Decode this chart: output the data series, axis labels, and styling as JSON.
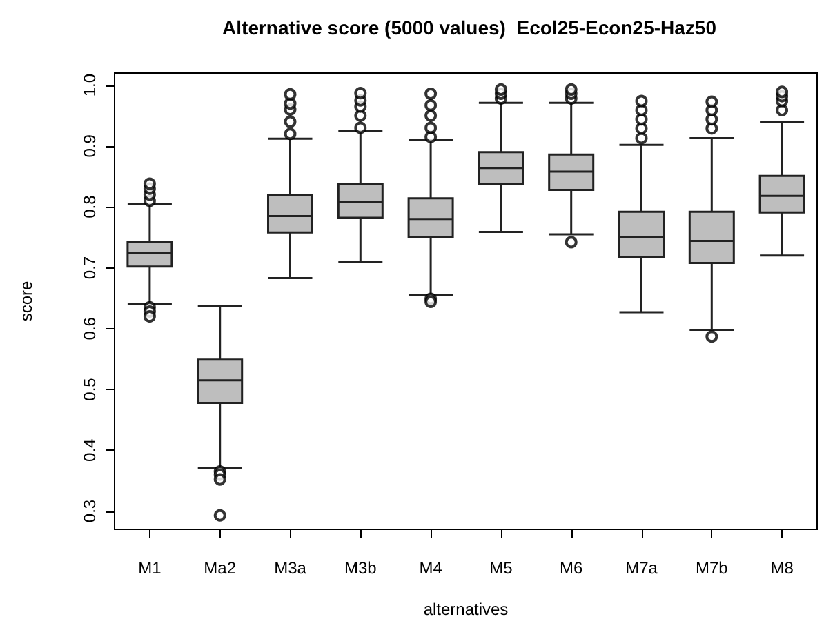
{
  "chart_data": {
    "type": "box",
    "title": "Alternative score (5000 values)  Ecol25-Econ25-Haz50",
    "xlabel": "alternatives",
    "ylabel": "score",
    "categories": [
      "M1",
      "Ma2",
      "M3a",
      "M3b",
      "M4",
      "M5",
      "M6",
      "M7a",
      "M7b",
      "M8"
    ],
    "color": "#bebebe",
    "boxes": [
      {
        "low": 0.641,
        "q1": 0.702,
        "median": 0.724,
        "q3": 0.742,
        "high": 0.805,
        "outliers": [
          0.81,
          0.82,
          0.83,
          0.838,
          0.635,
          0.628,
          0.62
        ]
      },
      {
        "low": 0.371,
        "q1": 0.478,
        "median": 0.515,
        "q3": 0.549,
        "high": 0.637,
        "outliers": [
          0.365,
          0.36,
          0.352,
          0.293
        ]
      },
      {
        "low": 0.683,
        "q1": 0.758,
        "median": 0.785,
        "q3": 0.819,
        "high": 0.912,
        "outliers": [
          0.92,
          0.94,
          0.96,
          0.97,
          0.985
        ]
      },
      {
        "low": 0.709,
        "q1": 0.782,
        "median": 0.808,
        "q3": 0.838,
        "high": 0.925,
        "outliers": [
          0.93,
          0.95,
          0.965,
          0.975,
          0.987
        ]
      },
      {
        "low": 0.655,
        "q1": 0.75,
        "median": 0.78,
        "q3": 0.814,
        "high": 0.91,
        "outliers": [
          0.915,
          0.93,
          0.95,
          0.967,
          0.986,
          0.649,
          0.644
        ]
      },
      {
        "low": 0.759,
        "q1": 0.837,
        "median": 0.864,
        "q3": 0.89,
        "high": 0.971,
        "outliers": [
          0.978,
          0.986,
          0.993
        ]
      },
      {
        "low": 0.755,
        "q1": 0.828,
        "median": 0.858,
        "q3": 0.886,
        "high": 0.971,
        "outliers": [
          0.978,
          0.986,
          0.993,
          0.742
        ]
      },
      {
        "low": 0.627,
        "q1": 0.717,
        "median": 0.75,
        "q3": 0.792,
        "high": 0.902,
        "outliers": [
          0.913,
          0.929,
          0.944,
          0.959,
          0.974
        ]
      },
      {
        "low": 0.598,
        "q1": 0.708,
        "median": 0.744,
        "q3": 0.792,
        "high": 0.913,
        "outliers": [
          0.929,
          0.944,
          0.959,
          0.973,
          0.587
        ]
      },
      {
        "low": 0.72,
        "q1": 0.791,
        "median": 0.818,
        "q3": 0.851,
        "high": 0.94,
        "outliers": [
          0.959,
          0.974,
          0.982,
          0.989
        ]
      }
    ],
    "ylim": [
      0.27,
      1.02
    ],
    "yticks": [
      0.3,
      0.4,
      0.5,
      0.6,
      0.7,
      0.8,
      0.9,
      {
        "value": 1,
        "label": "1.0"
      }
    ],
    "marker": "circle"
  }
}
